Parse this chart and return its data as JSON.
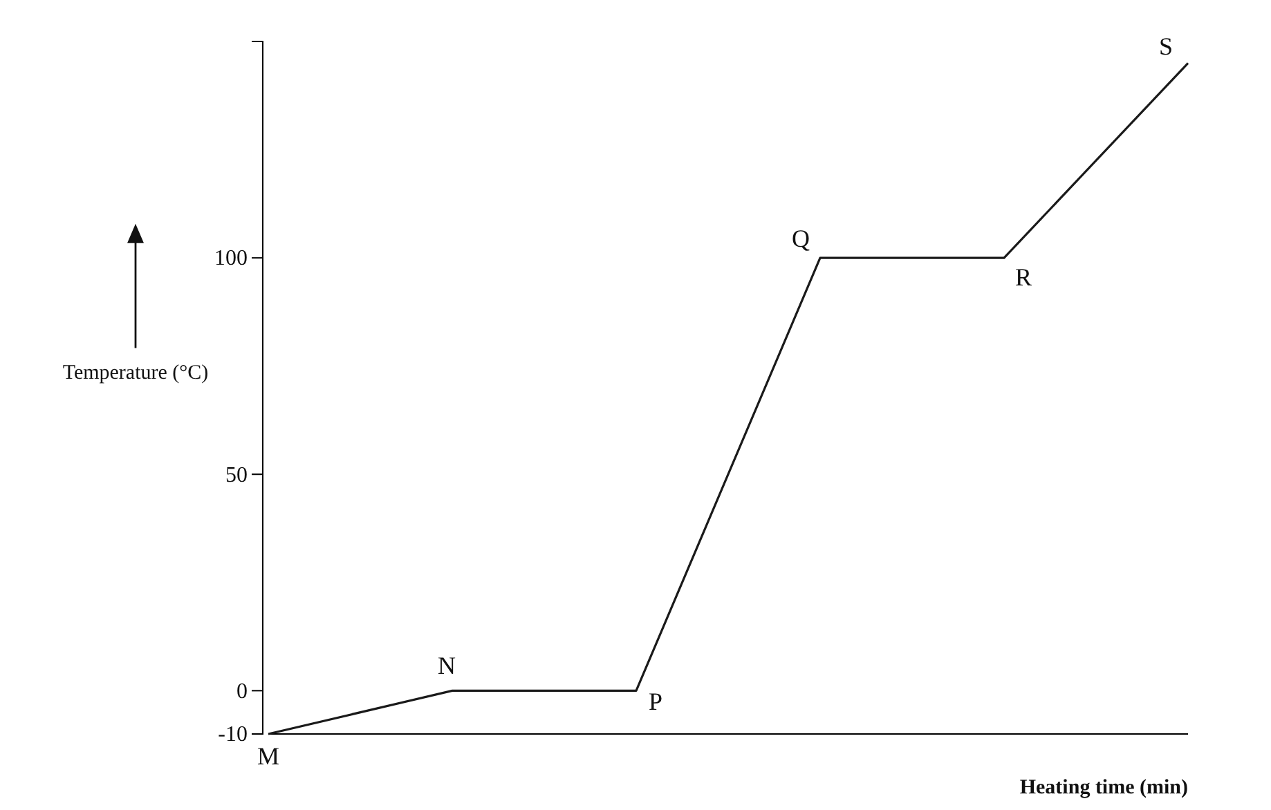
{
  "chart_data": {
    "type": "line",
    "xlabel": "Heating time (min)",
    "ylabel": "Temperature (°C)",
    "categories": [
      null,
      null,
      null,
      null,
      null,
      null
    ],
    "values": [
      -10,
      0,
      0,
      100,
      100,
      145
    ],
    "color": "#1a1a1a",
    "line_style": "solid",
    "tick_labels": "y",
    "ylim": [
      -10,
      150
    ],
    "yticks": [
      -10,
      0,
      50,
      100
    ],
    "annotations": [
      "M",
      "N",
      "P",
      "Q",
      "R",
      "S"
    ]
  }
}
